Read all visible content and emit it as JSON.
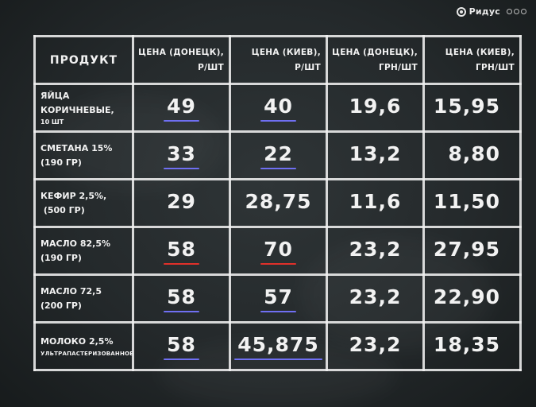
{
  "watermark": "Ридус",
  "table": {
    "header": {
      "product": "ПРОДУКТ",
      "columns": [
        {
          "line1": "ЦЕНА (ДОНЕЦК),",
          "line2": "Р/ШТ"
        },
        {
          "line1": "ЦЕНА (КИЕВ),",
          "line2": "Р/ШТ"
        },
        {
          "line1": "ЦЕНА (ДОНЕЦК),",
          "line2": "ГРН/ШТ"
        },
        {
          "line1": "ЦЕНА (КИЕВ),",
          "line2": "ГРН/ШТ"
        }
      ]
    },
    "rows": [
      {
        "product_lines": [
          "ЯЙЦА",
          "КОРИЧНЕВЫЕ,",
          "10 ШТ"
        ],
        "values": [
          "49",
          "40",
          "19,6",
          "15,95"
        ],
        "underlines": [
          "blue",
          "blue",
          "",
          ""
        ]
      },
      {
        "product_lines": [
          "СМЕТАНА 15%",
          "(190 ГР)"
        ],
        "values": [
          "33",
          "22",
          "13,2",
          "8,80"
        ],
        "underlines": [
          "blue",
          "blue",
          "",
          ""
        ]
      },
      {
        "product_lines": [
          "КЕФИР 2,5%,",
          " (500 ГР)"
        ],
        "values": [
          "29",
          "28,75",
          "11,6",
          "11,50"
        ],
        "underlines": [
          "",
          "",
          "",
          ""
        ]
      },
      {
        "product_lines": [
          "МАСЛО 82,5%",
          "(190 ГР)"
        ],
        "values": [
          "58",
          "70",
          "23,2",
          "27,95"
        ],
        "underlines": [
          "red",
          "red",
          "",
          ""
        ]
      },
      {
        "product_lines": [
          "МАСЛО 72,5",
          "(200 ГР)"
        ],
        "values": [
          "58",
          "57",
          "23,2",
          "22,90"
        ],
        "underlines": [
          "blue",
          "blue",
          "",
          ""
        ]
      },
      {
        "product_lines": [
          "МОЛОКО 2,5%",
          "УЛЬТРАПАСТЕРИЗОВАННОЕ"
        ],
        "values": [
          "58",
          "45,875",
          "23,2",
          "18,35"
        ],
        "underlines": [
          "blue",
          "blue",
          "",
          ""
        ]
      }
    ]
  },
  "colors": {
    "board": "#24292b",
    "chalk": "#f2f2f2",
    "underline_blue": "#6f6ff2",
    "underline_red": "#e0302a"
  },
  "icons": {
    "watermark_logo": "ridus-logo-icon",
    "watermark_dots": "dots-icon"
  }
}
